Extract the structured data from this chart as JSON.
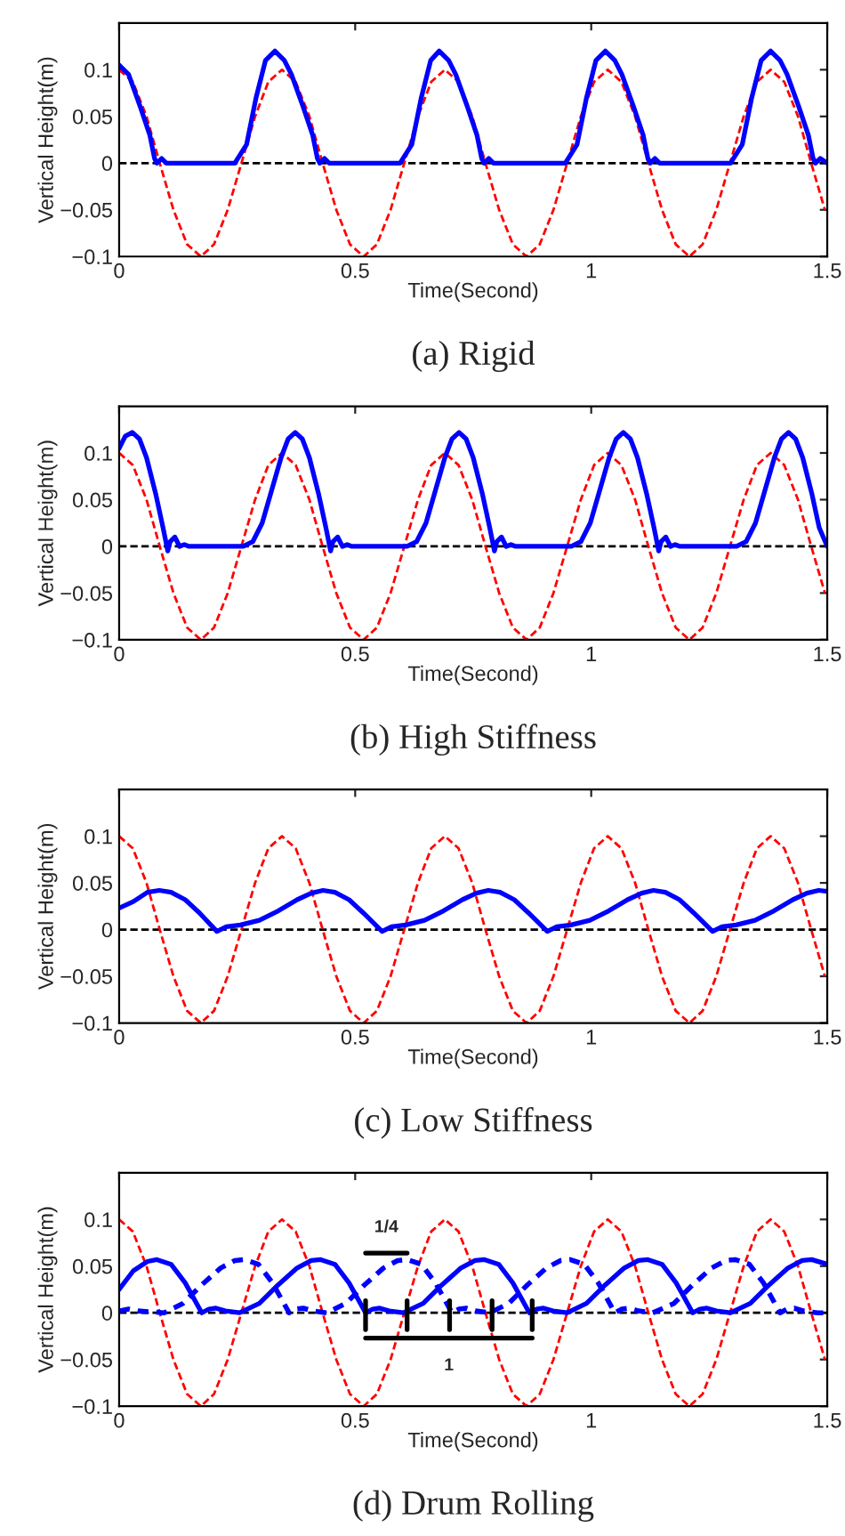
{
  "chart_data": [
    {
      "type": "line",
      "title": "(a) Rigid",
      "xlabel": "Time(Second)",
      "ylabel": "Vertical Height(m)",
      "xlim": [
        0,
        1.5
      ],
      "ylim": [
        -0.1,
        0.15
      ],
      "xticks": [
        0,
        0.5,
        1,
        1.5
      ],
      "yticks": [
        -0.1,
        -0.05,
        0,
        0.05,
        0.1
      ],
      "marker": "none",
      "ref_lines": [
        {
          "axis": "y",
          "value": 0,
          "color": "#000000",
          "line_style": "dashed"
        }
      ],
      "series": [
        {
          "color": "#ff0000",
          "line_style": "dashed",
          "x": [
            0,
            0.029,
            0.058,
            0.086,
            0.115,
            0.144,
            0.173,
            0.201,
            0.23,
            0.259,
            0.288,
            0.316,
            0.345,
            0.374,
            0.403,
            0.431,
            0.46,
            0.489,
            0.518,
            0.546,
            0.575,
            0.604,
            0.633,
            0.661,
            0.69,
            0.719,
            0.748,
            0.776,
            0.805,
            0.834,
            0.863,
            0.891,
            0.92,
            0.949,
            0.978,
            1.006,
            1.035,
            1.064,
            1.093,
            1.121,
            1.15,
            1.179,
            1.208,
            1.236,
            1.265,
            1.294,
            1.323,
            1.351,
            1.38,
            1.409,
            1.438,
            1.466,
            1.495
          ],
          "values": [
            0.1,
            0.087,
            0.05,
            0,
            -0.05,
            -0.087,
            -0.1,
            -0.087,
            -0.05,
            0,
            0.05,
            0.087,
            0.1,
            0.087,
            0.05,
            0,
            -0.05,
            -0.087,
            -0.1,
            -0.087,
            -0.05,
            0,
            0.05,
            0.087,
            0.1,
            0.087,
            0.05,
            0,
            -0.05,
            -0.087,
            -0.1,
            -0.087,
            -0.05,
            0,
            0.05,
            0.087,
            0.1,
            0.087,
            0.05,
            0,
            -0.05,
            -0.087,
            -0.1,
            -0.087,
            -0.05,
            0,
            0.05,
            0.087,
            0.1,
            0.087,
            0.05,
            0,
            -0.05
          ]
        },
        {
          "color": "#0000ff",
          "line_style": "solid",
          "x": [
            0,
            0.02,
            0.045,
            0.065,
            0.075,
            0.08,
            0.09,
            0.1,
            0.245,
            0.27,
            0.29,
            0.31,
            0.33,
            0.35,
            0.365,
            0.39,
            0.41,
            0.42,
            0.425,
            0.435,
            0.445,
            0.595,
            0.62,
            0.64,
            0.66,
            0.678,
            0.698,
            0.713,
            0.738,
            0.758,
            0.768,
            0.773,
            0.783,
            0.793,
            0.945,
            0.97,
            0.99,
            1.01,
            1.03,
            1.05,
            1.065,
            1.09,
            1.11,
            1.12,
            1.125,
            1.135,
            1.145,
            1.295,
            1.32,
            1.34,
            1.36,
            1.38,
            1.4,
            1.415,
            1.44,
            1.46,
            1.47,
            1.475,
            1.485,
            1.5
          ],
          "values": [
            0.105,
            0.095,
            0.06,
            0.03,
            0.005,
            0,
            0.005,
            0,
            0,
            0.02,
            0.07,
            0.11,
            0.12,
            0.11,
            0.095,
            0.06,
            0.03,
            0.005,
            0,
            0.005,
            0,
            0,
            0.02,
            0.07,
            0.11,
            0.12,
            0.11,
            0.095,
            0.06,
            0.03,
            0.005,
            0,
            0.005,
            0,
            0,
            0.02,
            0.07,
            0.11,
            0.12,
            0.11,
            0.095,
            0.06,
            0.03,
            0.005,
            0,
            0.005,
            0,
            0,
            0.02,
            0.07,
            0.11,
            0.12,
            0.11,
            0.095,
            0.06,
            0.03,
            0.005,
            0,
            0.005,
            0
          ]
        }
      ]
    },
    {
      "type": "line",
      "title": "(b) High Stiffness",
      "xlabel": "Time(Second)",
      "ylabel": "Vertical Height(m)",
      "xlim": [
        0,
        1.5
      ],
      "ylim": [
        -0.1,
        0.15
      ],
      "xticks": [
        0,
        0.5,
        1,
        1.5
      ],
      "yticks": [
        -0.1,
        -0.05,
        0,
        0.05,
        0.1
      ],
      "marker": "none",
      "ref_lines": [
        {
          "axis": "y",
          "value": 0,
          "color": "#000000",
          "line_style": "dashed"
        }
      ],
      "series": [
        {
          "color": "#ff0000",
          "line_style": "dashed",
          "x": [
            0,
            0.029,
            0.058,
            0.086,
            0.115,
            0.144,
            0.173,
            0.201,
            0.23,
            0.259,
            0.288,
            0.316,
            0.345,
            0.374,
            0.403,
            0.431,
            0.46,
            0.489,
            0.518,
            0.546,
            0.575,
            0.604,
            0.633,
            0.661,
            0.69,
            0.719,
            0.748,
            0.776,
            0.805,
            0.834,
            0.863,
            0.891,
            0.92,
            0.949,
            0.978,
            1.006,
            1.035,
            1.064,
            1.093,
            1.121,
            1.15,
            1.179,
            1.208,
            1.236,
            1.265,
            1.294,
            1.323,
            1.351,
            1.38,
            1.409,
            1.438,
            1.466,
            1.495
          ],
          "values": [
            0.1,
            0.087,
            0.05,
            0,
            -0.05,
            -0.087,
            -0.1,
            -0.087,
            -0.05,
            0,
            0.05,
            0.087,
            0.1,
            0.087,
            0.05,
            0,
            -0.05,
            -0.087,
            -0.1,
            -0.087,
            -0.05,
            0,
            0.05,
            0.087,
            0.1,
            0.087,
            0.05,
            0,
            -0.05,
            -0.087,
            -0.1,
            -0.087,
            -0.05,
            0,
            0.05,
            0.087,
            0.1,
            0.087,
            0.05,
            0,
            -0.05,
            -0.087,
            -0.1,
            -0.087,
            -0.05,
            0,
            0.05,
            0.087,
            0.1,
            0.087,
            0.05,
            0,
            -0.05
          ]
        },
        {
          "color": "#0000ff",
          "line_style": "solid",
          "x": [
            0,
            0.013,
            0.028,
            0.043,
            0.058,
            0.078,
            0.093,
            0.103,
            0.108,
            0.118,
            0.128,
            0.138,
            0.148,
            0.263,
            0.283,
            0.303,
            0.323,
            0.343,
            0.358,
            0.373,
            0.388,
            0.403,
            0.423,
            0.438,
            0.448,
            0.453,
            0.463,
            0.473,
            0.483,
            0.493,
            0.61,
            0.63,
            0.65,
            0.67,
            0.69,
            0.705,
            0.72,
            0.735,
            0.75,
            0.77,
            0.785,
            0.795,
            0.8,
            0.81,
            0.82,
            0.83,
            0.84,
            0.958,
            0.978,
            0.998,
            1.018,
            1.038,
            1.053,
            1.068,
            1.083,
            1.098,
            1.118,
            1.133,
            1.143,
            1.148,
            1.158,
            1.168,
            1.178,
            1.188,
            1.308,
            1.328,
            1.348,
            1.368,
            1.388,
            1.403,
            1.418,
            1.433,
            1.448,
            1.468,
            1.483,
            1.5
          ],
          "values": [
            0.105,
            0.118,
            0.122,
            0.115,
            0.095,
            0.055,
            0.02,
            -0.005,
            0.005,
            0.01,
            0,
            0.002,
            0,
            0,
            0.005,
            0.025,
            0.06,
            0.095,
            0.115,
            0.122,
            0.115,
            0.095,
            0.055,
            0.02,
            -0.005,
            0.005,
            0.01,
            0,
            0.002,
            0,
            0,
            0.005,
            0.025,
            0.06,
            0.095,
            0.115,
            0.122,
            0.115,
            0.095,
            0.055,
            0.02,
            -0.005,
            0.005,
            0.01,
            0,
            0.002,
            0,
            0,
            0.005,
            0.025,
            0.06,
            0.095,
            0.115,
            0.122,
            0.115,
            0.095,
            0.055,
            0.02,
            -0.005,
            0.005,
            0.01,
            0,
            0.002,
            0,
            0,
            0.005,
            0.025,
            0.06,
            0.095,
            0.115,
            0.122,
            0.115,
            0.095,
            0.055,
            0.02,
            0
          ]
        }
      ]
    },
    {
      "type": "line",
      "title": "(c) Low Stiffness",
      "xlabel": "Time(Second)",
      "ylabel": "Vertical Height(m)",
      "xlim": [
        0,
        1.5
      ],
      "ylim": [
        -0.1,
        0.15
      ],
      "xticks": [
        0,
        0.5,
        1,
        1.5
      ],
      "yticks": [
        -0.1,
        -0.05,
        0,
        0.05,
        0.1
      ],
      "marker": "none",
      "ref_lines": [
        {
          "axis": "y",
          "value": 0,
          "color": "#000000",
          "line_style": "dashed"
        }
      ],
      "series": [
        {
          "color": "#ff0000",
          "line_style": "dashed",
          "x": [
            0,
            0.029,
            0.058,
            0.086,
            0.115,
            0.144,
            0.173,
            0.201,
            0.23,
            0.259,
            0.288,
            0.316,
            0.345,
            0.374,
            0.403,
            0.431,
            0.46,
            0.489,
            0.518,
            0.546,
            0.575,
            0.604,
            0.633,
            0.661,
            0.69,
            0.719,
            0.748,
            0.776,
            0.805,
            0.834,
            0.863,
            0.891,
            0.92,
            0.949,
            0.978,
            1.006,
            1.035,
            1.064,
            1.093,
            1.121,
            1.15,
            1.179,
            1.208,
            1.236,
            1.265,
            1.294,
            1.323,
            1.351,
            1.38,
            1.409,
            1.438,
            1.466,
            1.495
          ],
          "values": [
            0.1,
            0.087,
            0.05,
            0,
            -0.05,
            -0.087,
            -0.1,
            -0.087,
            -0.05,
            0,
            0.05,
            0.087,
            0.1,
            0.087,
            0.05,
            0,
            -0.05,
            -0.087,
            -0.1,
            -0.087,
            -0.05,
            0,
            0.05,
            0.087,
            0.1,
            0.087,
            0.05,
            0,
            -0.05,
            -0.087,
            -0.1,
            -0.087,
            -0.05,
            0,
            0.05,
            0.087,
            0.1,
            0.087,
            0.05,
            0,
            -0.05,
            -0.087,
            -0.1,
            -0.087,
            -0.05,
            0,
            0.05,
            0.087,
            0.1,
            0.087,
            0.05,
            0,
            -0.05
          ]
        },
        {
          "color": "#0000ff",
          "line_style": "solid",
          "x": [
            0,
            0.03,
            0.06,
            0.085,
            0.11,
            0.14,
            0.17,
            0.207,
            0.227,
            0.257,
            0.297,
            0.337,
            0.377,
            0.407,
            0.432,
            0.457,
            0.487,
            0.517,
            0.557,
            0.577,
            0.607,
            0.647,
            0.687,
            0.727,
            0.757,
            0.782,
            0.807,
            0.837,
            0.867,
            0.907,
            0.927,
            0.957,
            0.997,
            1.037,
            1.077,
            1.107,
            1.132,
            1.157,
            1.187,
            1.217,
            1.257,
            1.277,
            1.307,
            1.347,
            1.387,
            1.427,
            1.457,
            1.482,
            1.5
          ],
          "values": [
            0.023,
            0.03,
            0.04,
            0.042,
            0.04,
            0.032,
            0.018,
            -0.002,
            0.003,
            0.005,
            0.01,
            0.02,
            0.032,
            0.039,
            0.042,
            0.04,
            0.032,
            0.018,
            -0.002,
            0.003,
            0.005,
            0.01,
            0.02,
            0.032,
            0.039,
            0.042,
            0.04,
            0.032,
            0.018,
            -0.002,
            0.003,
            0.005,
            0.01,
            0.02,
            0.032,
            0.039,
            0.042,
            0.04,
            0.032,
            0.018,
            -0.002,
            0.003,
            0.005,
            0.01,
            0.02,
            0.032,
            0.039,
            0.042,
            0.041
          ]
        }
      ]
    },
    {
      "type": "line",
      "title": "(d) Drum Rolling",
      "xlabel": "Time(Second)",
      "ylabel": "Vertical Height(m)",
      "xlim": [
        0,
        1.5
      ],
      "ylim": [
        -0.1,
        0.15
      ],
      "xticks": [
        0,
        0.5,
        1,
        1.5
      ],
      "yticks": [
        -0.1,
        -0.05,
        0,
        0.05,
        0.1
      ],
      "marker": "none",
      "ref_lines": [
        {
          "axis": "y",
          "value": 0,
          "color": "#000000",
          "line_style": "dashed"
        }
      ],
      "annotations": [
        "1/4",
        "1"
      ],
      "series": [
        {
          "color": "#ff0000",
          "line_style": "dashed",
          "x": [
            0,
            0.029,
            0.058,
            0.086,
            0.115,
            0.144,
            0.173,
            0.201,
            0.23,
            0.259,
            0.288,
            0.316,
            0.345,
            0.374,
            0.403,
            0.431,
            0.46,
            0.489,
            0.518,
            0.546,
            0.575,
            0.604,
            0.633,
            0.661,
            0.69,
            0.719,
            0.748,
            0.776,
            0.805,
            0.834,
            0.863,
            0.891,
            0.92,
            0.949,
            0.978,
            1.006,
            1.035,
            1.064,
            1.093,
            1.121,
            1.15,
            1.179,
            1.208,
            1.236,
            1.265,
            1.294,
            1.323,
            1.351,
            1.38,
            1.409,
            1.438,
            1.466,
            1.495
          ],
          "values": [
            0.1,
            0.087,
            0.05,
            0,
            -0.05,
            -0.087,
            -0.1,
            -0.087,
            -0.05,
            0,
            0.05,
            0.087,
            0.1,
            0.087,
            0.05,
            0,
            -0.05,
            -0.087,
            -0.1,
            -0.087,
            -0.05,
            0,
            0.05,
            0.087,
            0.1,
            0.087,
            0.05,
            0,
            -0.05,
            -0.087,
            -0.1,
            -0.087,
            -0.05,
            0,
            0.05,
            0.087,
            0.1,
            0.087,
            0.05,
            0,
            -0.05,
            -0.087,
            -0.1,
            -0.087,
            -0.05,
            0,
            0.05,
            0.087,
            0.1,
            0.087,
            0.05,
            0,
            -0.05
          ]
        },
        {
          "color": "#0000ff",
          "line_style": "dotted",
          "x": [
            0,
            0.02,
            0.04,
            0.095,
            0.135,
            0.175,
            0.215,
            0.245,
            0.265,
            0.295,
            0.325,
            0.36,
            0.375,
            0.39,
            0.41,
            0.44,
            0.48,
            0.52,
            0.56,
            0.59,
            0.61,
            0.64,
            0.67,
            0.705,
            0.72,
            0.735,
            0.755,
            0.785,
            0.825,
            0.865,
            0.905,
            0.935,
            0.955,
            0.985,
            1.015,
            1.05,
            1.065,
            1.08,
            1.1,
            1.13,
            1.175,
            1.215,
            1.255,
            1.285,
            1.305,
            1.335,
            1.365,
            1.4,
            1.415,
            1.43,
            1.45,
            1.48,
            1.5
          ],
          "values": [
            0.002,
            0.004,
            0.002,
            0,
            0.01,
            0.03,
            0.048,
            0.056,
            0.057,
            0.052,
            0.032,
            0,
            0.004,
            0.005,
            0.002,
            0,
            0.01,
            0.03,
            0.048,
            0.056,
            0.057,
            0.052,
            0.032,
            0,
            0.004,
            0.005,
            0.002,
            0,
            0.01,
            0.03,
            0.048,
            0.056,
            0.057,
            0.052,
            0.032,
            0,
            0.004,
            0.005,
            0.002,
            0,
            0.01,
            0.03,
            0.048,
            0.056,
            0.057,
            0.052,
            0.032,
            0,
            0.004,
            0.005,
            0.002,
            0,
            0
          ]
        },
        {
          "color": "#0000ff",
          "line_style": "solid",
          "x": [
            0,
            0.03,
            0.06,
            0.08,
            0.11,
            0.14,
            0.175,
            0.19,
            0.205,
            0.225,
            0.255,
            0.297,
            0.337,
            0.377,
            0.407,
            0.427,
            0.457,
            0.487,
            0.522,
            0.537,
            0.552,
            0.572,
            0.602,
            0.644,
            0.684,
            0.724,
            0.754,
            0.774,
            0.804,
            0.834,
            0.869,
            0.884,
            0.899,
            0.919,
            0.949,
            0.99,
            1.03,
            1.07,
            1.1,
            1.12,
            1.15,
            1.18,
            1.215,
            1.23,
            1.245,
            1.265,
            1.295,
            1.337,
            1.377,
            1.417,
            1.447,
            1.467,
            1.5
          ],
          "values": [
            0.025,
            0.045,
            0.055,
            0.057,
            0.052,
            0.032,
            0,
            0.004,
            0.005,
            0.002,
            0,
            0.01,
            0.03,
            0.048,
            0.056,
            0.057,
            0.052,
            0.032,
            0,
            0.004,
            0.005,
            0.002,
            0,
            0.01,
            0.03,
            0.048,
            0.056,
            0.057,
            0.052,
            0.032,
            0,
            0.004,
            0.005,
            0.002,
            0,
            0.01,
            0.03,
            0.048,
            0.056,
            0.057,
            0.052,
            0.032,
            0,
            0.004,
            0.005,
            0.002,
            0,
            0.01,
            0.03,
            0.048,
            0.056,
            0.057,
            0.052
          ]
        },
        {
          "color": "#000000",
          "line_style": "solid",
          "x": [
            0.522,
            0.61,
            null,
            0.522,
            0.875,
            null,
            0.522,
            0.522,
            null,
            0.61,
            0.61,
            null,
            0.7,
            0.7,
            null,
            0.79,
            0.79,
            null,
            0.875,
            0.875
          ],
          "values": [
            0.064,
            0.064,
            null,
            -0.027,
            -0.027,
            null,
            0.013,
            -0.018,
            null,
            0.013,
            -0.018,
            null,
            0.013,
            -0.018,
            null,
            0.013,
            -0.018,
            null,
            0.013,
            -0.018
          ]
        }
      ]
    }
  ]
}
